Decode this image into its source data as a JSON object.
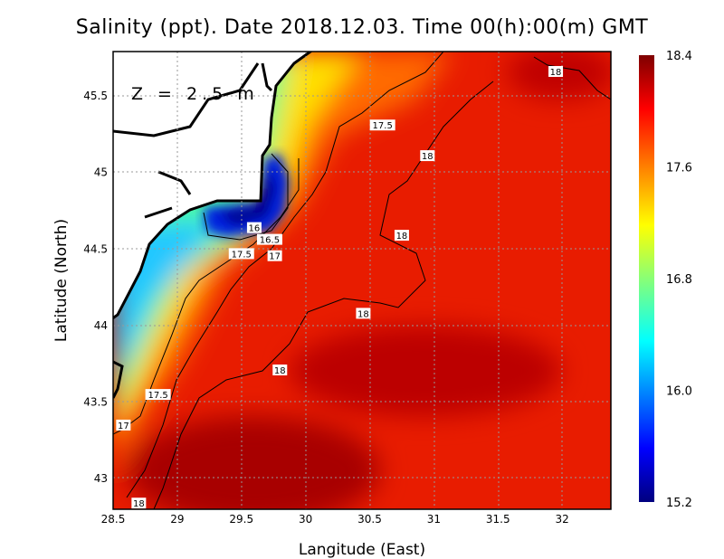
{
  "title": "Salinity (ppt). Date 2018.12.03. Time 00(h):00(m) GMT",
  "depth_label": "Z = 2.5 m",
  "chart_data": {
    "type": "heatmap",
    "title": "Salinity (ppt). Date 2018.12.03. Time 00(h):00(m) GMT",
    "xlabel": "Langitude (East)",
    "ylabel": "Latitude (North)",
    "xlim": [
      28.5,
      32.38
    ],
    "ylim": [
      42.8,
      45.79
    ],
    "xticks": [
      "28.5",
      "29",
      "29.5",
      "30",
      "30.5",
      "31",
      "31.5",
      "32"
    ],
    "yticks": [
      "45.5",
      "45",
      "44.5",
      "44",
      "43.5",
      "43"
    ],
    "grid": true,
    "colorbar": {
      "min": 15.2,
      "max": 18.4,
      "ticks": [
        "18.4",
        "17.6",
        "16.8",
        "16.0",
        "15.2"
      ],
      "colormap": "jet"
    },
    "contour_labels": [
      {
        "value": "18",
        "lon": 31.95,
        "lat": 45.66
      },
      {
        "value": "17.5",
        "lon": 30.6,
        "lat": 45.31
      },
      {
        "value": "18",
        "lon": 30.95,
        "lat": 45.11
      },
      {
        "value": "18",
        "lon": 30.75,
        "lat": 44.59
      },
      {
        "value": "18",
        "lon": 30.45,
        "lat": 44.08
      },
      {
        "value": "18",
        "lon": 29.8,
        "lat": 43.71
      },
      {
        "value": "17.5",
        "lon": 29.5,
        "lat": 44.47
      },
      {
        "value": "17.5",
        "lon": 28.85,
        "lat": 43.55
      },
      {
        "value": "17",
        "lon": 28.58,
        "lat": 43.35
      },
      {
        "value": "16",
        "lon": 29.6,
        "lat": 44.64
      },
      {
        "value": "16.5",
        "lon": 29.72,
        "lat": 44.64
      },
      {
        "value": "17",
        "lon": 29.76,
        "lat": 44.61
      },
      {
        "value": "18",
        "lon": 28.7,
        "lat": 42.84
      }
    ],
    "notes": "Low salinity (~15.3) near Danube delta (29.6E,44.8N); high (~18.3) offshore south"
  }
}
